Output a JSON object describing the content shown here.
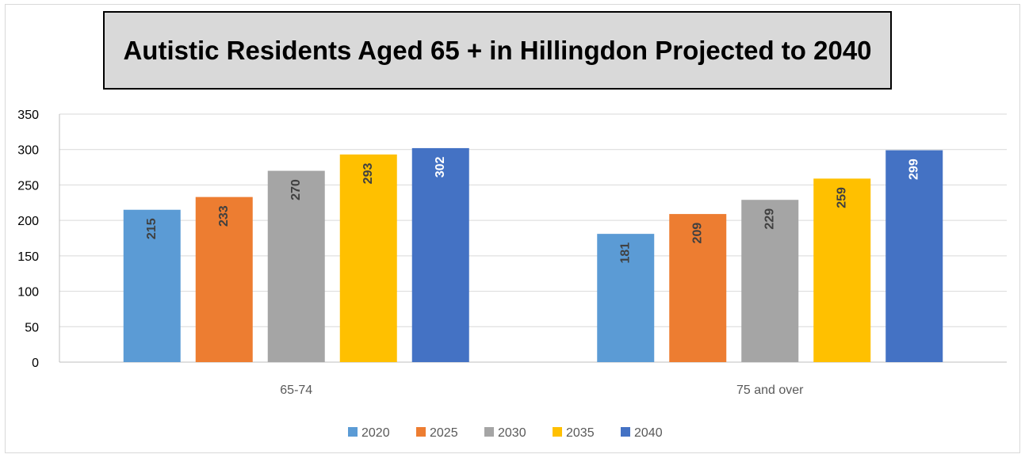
{
  "chart_data": {
    "type": "bar",
    "title": "Autistic Residents Aged 65 + in Hillingdon Projected to 2040",
    "categories": [
      "65-74",
      "75 and over"
    ],
    "series": [
      {
        "name": "2020",
        "values": [
          215,
          181
        ],
        "color": "#5b9bd5"
      },
      {
        "name": "2025",
        "values": [
          233,
          209
        ],
        "color": "#ed7d31"
      },
      {
        "name": "2030",
        "values": [
          270,
          229
        ],
        "color": "#a5a5a5"
      },
      {
        "name": "2035",
        "values": [
          293,
          259
        ],
        "color": "#ffc000"
      },
      {
        "name": "2040",
        "values": [
          302,
          299
        ],
        "color": "#4472c4"
      }
    ],
    "ylim": [
      0,
      350
    ],
    "yticks": [
      "0",
      "50",
      "100",
      "150",
      "200",
      "250",
      "300",
      "350"
    ],
    "xlabel": "",
    "ylabel": "",
    "grid": true,
    "legend_position": "bottom",
    "data_labels": "inside-end, rotated"
  }
}
